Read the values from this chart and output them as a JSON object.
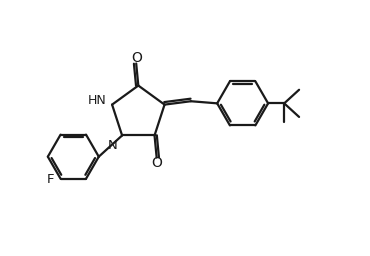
{
  "bg_color": "#ffffff",
  "line_color": "#1a1a1a",
  "line_width": 1.6,
  "dbo": 0.06,
  "figsize": [
    3.7,
    2.56
  ],
  "dpi": 100,
  "xlim": [
    -0.5,
    6.5
  ],
  "ylim": [
    -3.2,
    2.8
  ]
}
